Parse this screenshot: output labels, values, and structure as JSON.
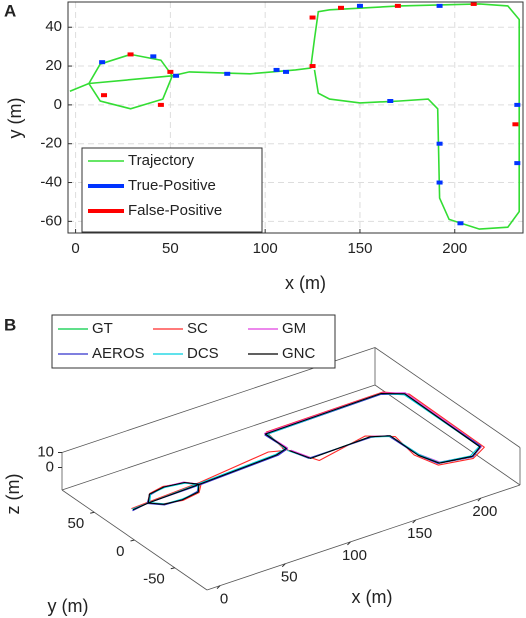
{
  "chart_data": [
    {
      "type": "line",
      "panel": "A",
      "xlabel": "x (m)",
      "ylabel": "y (m)",
      "xlim": [
        -4,
        236
      ],
      "ylim": [
        -66,
        53
      ],
      "xticks": [
        0,
        50,
        100,
        150,
        200
      ],
      "yticks": [
        -60,
        -40,
        -20,
        0,
        20,
        40
      ],
      "grid": true,
      "legend": "lower left",
      "series": [
        {
          "name": "Trajectory",
          "type": "line",
          "color": "#33dd33",
          "x": [
            -3,
            7,
            13,
            29,
            45,
            51,
            46,
            29,
            13,
            7,
            51,
            60,
            92,
            116,
            124,
            126,
            128,
            134,
            171,
            213,
            228,
            234,
            234,
            228,
            213,
            197,
            192,
            191,
            186,
            171,
            150,
            134,
            128,
            126
          ],
          "y": [
            7,
            11,
            21,
            26,
            23,
            15,
            3,
            -2,
            2,
            11,
            15,
            17,
            16,
            18,
            19,
            34,
            48,
            49,
            51,
            52,
            51,
            44,
            -55,
            -63,
            -64,
            -59,
            -48,
            -2,
            3,
            2,
            1,
            3,
            6,
            18
          ]
        },
        {
          "name": "True-Positive",
          "type": "scatter",
          "color": "#0033ff",
          "x": [
            14,
            41,
            53,
            80,
            106,
            150,
            192,
            233,
            233,
            192,
            192,
            166,
            111,
            203
          ],
          "y": [
            22,
            25,
            15,
            16,
            18,
            51,
            51,
            0,
            -30,
            -20,
            -40,
            2,
            17,
            -61
          ]
        },
        {
          "name": "False-Positive",
          "type": "scatter",
          "color": "#ff0000",
          "x": [
            29,
            50,
            125,
            125,
            140,
            170,
            232,
            45,
            15,
            210
          ],
          "y": [
            26,
            17,
            20,
            45,
            50,
            51,
            -10,
            0,
            5,
            52
          ]
        }
      ]
    },
    {
      "type": "line3d",
      "panel": "B",
      "xlabel": "x (m)",
      "ylabel": "y (m)",
      "zlabel": "z (m)",
      "xlim": [
        -10,
        230
      ],
      "ylim": [
        -90,
        90
      ],
      "zlim": [
        -15,
        10
      ],
      "xticks": [
        0,
        50,
        100,
        150,
        200
      ],
      "yticks": [
        -50,
        0,
        50
      ],
      "zticks": [
        0,
        10
      ],
      "legend": "upper left",
      "series": [
        {
          "name": "GT",
          "color": "#00cc44",
          "x": [
            -5,
            8,
            15,
            28,
            42,
            48,
            42,
            28,
            15,
            8,
            50,
            110,
            120,
            120,
            210,
            222,
            222,
            210,
            188,
            183,
            183,
            172,
            125,
            120
          ],
          "y": [
            10,
            12,
            22,
            25,
            22,
            14,
            5,
            2,
            4,
            12,
            14,
            18,
            22,
            48,
            50,
            40,
            -55,
            -64,
            -58,
            -40,
            -5,
            2,
            0,
            18
          ]
        },
        {
          "name": "SC",
          "color": "#ff2a2a",
          "x": [
            -5,
            8,
            16,
            28,
            43,
            49,
            42,
            28,
            14,
            8,
            50,
            108,
            118,
            122,
            212,
            224,
            223,
            209,
            186,
            181,
            185,
            170,
            128,
            118
          ],
          "y": [
            12,
            13,
            23,
            26,
            21,
            13,
            4,
            1,
            5,
            13,
            16,
            25,
            20,
            50,
            51,
            38,
            -57,
            -66,
            -60,
            -38,
            -8,
            5,
            -6,
            24
          ]
        },
        {
          "name": "GM",
          "color": "#e040e0",
          "x": [
            -4,
            8,
            15,
            29,
            42,
            48,
            41,
            28,
            15,
            8,
            51,
            110,
            121,
            120,
            211,
            223,
            222,
            211,
            189,
            184,
            183,
            173,
            126,
            121
          ],
          "y": [
            10,
            12,
            22,
            25,
            23,
            14,
            5,
            2,
            4,
            12,
            14,
            18,
            22,
            49,
            50,
            41,
            -55,
            -63,
            -57,
            -39,
            -5,
            2,
            0,
            18
          ]
        },
        {
          "name": "AEROS",
          "color": "#3333cc",
          "x": [
            -6,
            7,
            15,
            28,
            41,
            48,
            42,
            27,
            15,
            7,
            49,
            111,
            120,
            119,
            209,
            221,
            222,
            210,
            187,
            183,
            182,
            172,
            124,
            120
          ],
          "y": [
            9,
            12,
            21,
            25,
            22,
            15,
            6,
            2,
            3,
            12,
            13,
            17,
            21,
            47,
            49,
            40,
            -54,
            -64,
            -58,
            -41,
            -4,
            1,
            1,
            17
          ]
        },
        {
          "name": "DCS",
          "color": "#00d0e0",
          "x": [
            -5,
            9,
            16,
            28,
            42,
            47,
            42,
            28,
            16,
            9,
            50,
            110,
            119,
            121,
            210,
            221,
            221,
            209,
            188,
            184,
            183,
            171,
            125,
            119
          ],
          "y": [
            11,
            12,
            22,
            24,
            21,
            14,
            5,
            3,
            4,
            12,
            15,
            19,
            22,
            47,
            50,
            39,
            -54,
            -62,
            -57,
            -40,
            -6,
            2,
            0,
            19
          ]
        },
        {
          "name": "GNC",
          "color": "#000000",
          "x": [
            -5,
            8,
            15,
            28,
            42,
            48,
            42,
            28,
            15,
            8,
            50,
            110,
            120,
            120,
            210,
            222,
            221,
            210,
            188,
            183,
            183,
            172,
            125,
            120
          ],
          "y": [
            10,
            12,
            22,
            25,
            22,
            14,
            5,
            2,
            4,
            12,
            14,
            18,
            22,
            48,
            50,
            40,
            -55,
            -63,
            -58,
            -40,
            -5,
            2,
            0,
            18
          ]
        }
      ]
    }
  ]
}
